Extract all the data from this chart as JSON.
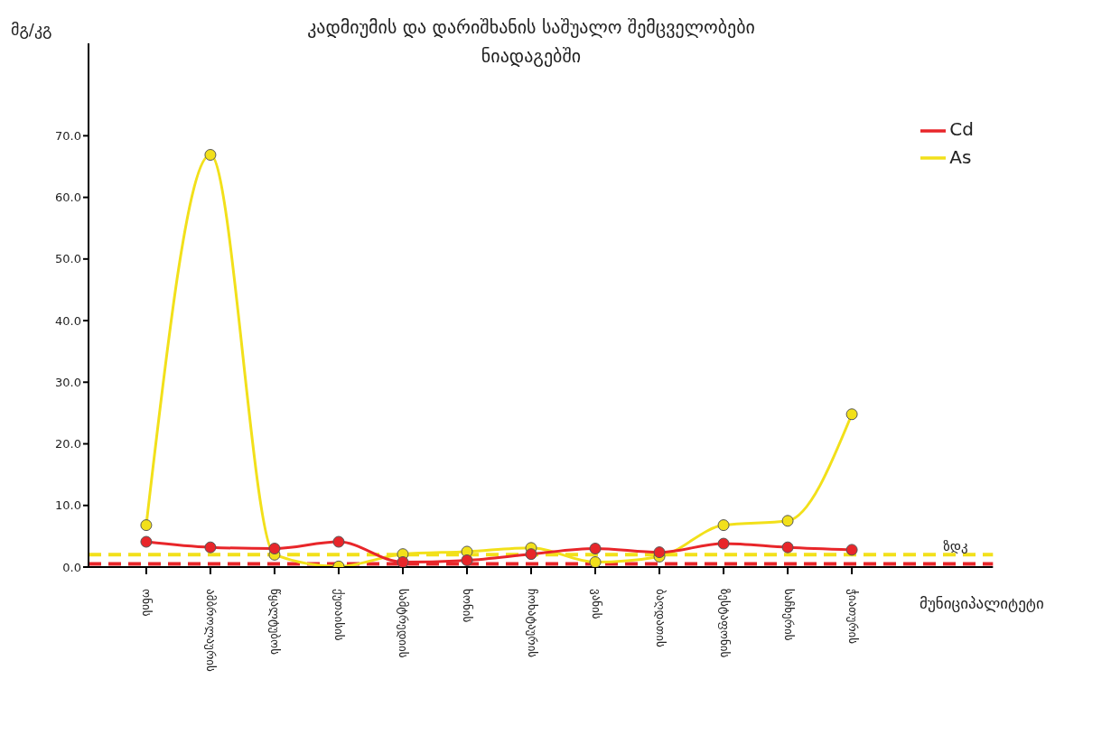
{
  "chart_data": {
    "type": "line",
    "title": "კადმიუმის და დარიშხანის საშუალო შემცველობები ნიადაგებში",
    "xlabel": "მუნიციპალიტეტი",
    "ylabel": "მგ/კგ",
    "categories": [
      "ონის",
      "ამბროლაურის",
      "წყალტუბოს",
      "ქუთაისის",
      "სამტრედიის",
      "ხონის",
      "ჩოხატაურის",
      "ვანის",
      "ბაღდათის",
      "ზესტაფონის",
      "საჩხერის",
      "ჭიათურის"
    ],
    "series": [
      {
        "name": "Cd",
        "color": "#e8262a",
        "values": [
          4.1,
          3.2,
          3.0,
          4.1,
          0.8,
          1.1,
          2.1,
          3.0,
          2.4,
          3.8,
          3.2,
          2.8
        ]
      },
      {
        "name": "As",
        "color": "#f2e01a",
        "values": [
          6.8,
          66.9,
          2.0,
          0.1,
          2.1,
          2.5,
          3.1,
          0.8,
          1.7,
          6.8,
          7.5,
          24.8
        ]
      }
    ],
    "ylim": [
      0,
      85
    ],
    "yticks": [
      {
        "value": 0,
        "label": "0.0"
      },
      {
        "value": 10,
        "label": "10.0"
      },
      {
        "value": 20,
        "label": "20.0"
      },
      {
        "value": 30,
        "label": "30.0"
      },
      {
        "value": 40,
        "label": "40.0"
      },
      {
        "value": 50,
        "label": "50.0"
      },
      {
        "value": 60,
        "label": "60.0"
      },
      {
        "value": 70,
        "label": "70.0"
      }
    ],
    "ref_lines": [
      {
        "axis": "y",
        "value": 2.0,
        "label": "ზდკ",
        "color": "#f2e01a",
        "line_style": "dashed"
      },
      {
        "axis": "y",
        "value": 0.5,
        "color": "#e8262a",
        "line_style": "dashed"
      }
    ],
    "grid": false,
    "legend": "top right",
    "marker": "circle",
    "line_style": "solid"
  }
}
